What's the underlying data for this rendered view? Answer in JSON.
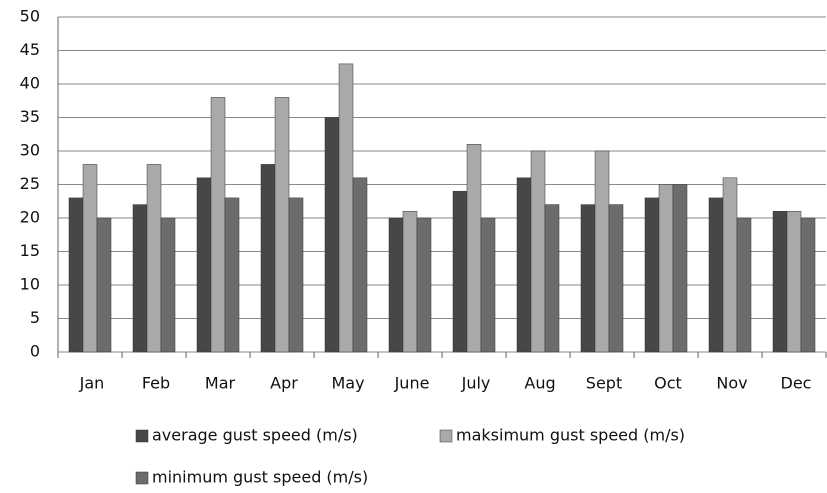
{
  "chart_data": {
    "type": "bar",
    "categories": [
      "Jan",
      "Feb",
      "Mar",
      "Apr",
      "May",
      "June",
      "July",
      "Aug",
      "Sept",
      "Oct",
      "Nov",
      "Dec"
    ],
    "series": [
      {
        "name": "average gust speed (m/s)",
        "color": "#474747",
        "values": [
          23,
          22,
          26,
          28,
          35,
          20,
          24,
          26,
          22,
          23,
          23,
          21
        ]
      },
      {
        "name": "maksimum gust speed (m/s)",
        "color": "#a9a9a9",
        "values": [
          28,
          28,
          38,
          38,
          43,
          21,
          31,
          30,
          30,
          25,
          26,
          21
        ]
      },
      {
        "name": "minimum gust speed (m/s)",
        "color": "#6c6c6c",
        "values": [
          20,
          20,
          23,
          23,
          26,
          20,
          20,
          22,
          22,
          25,
          20,
          20
        ]
      }
    ],
    "ylim": [
      0,
      50
    ],
    "yticks": [
      0,
      5,
      10,
      15,
      20,
      25,
      30,
      35,
      40,
      45,
      50
    ],
    "grid": true
  }
}
